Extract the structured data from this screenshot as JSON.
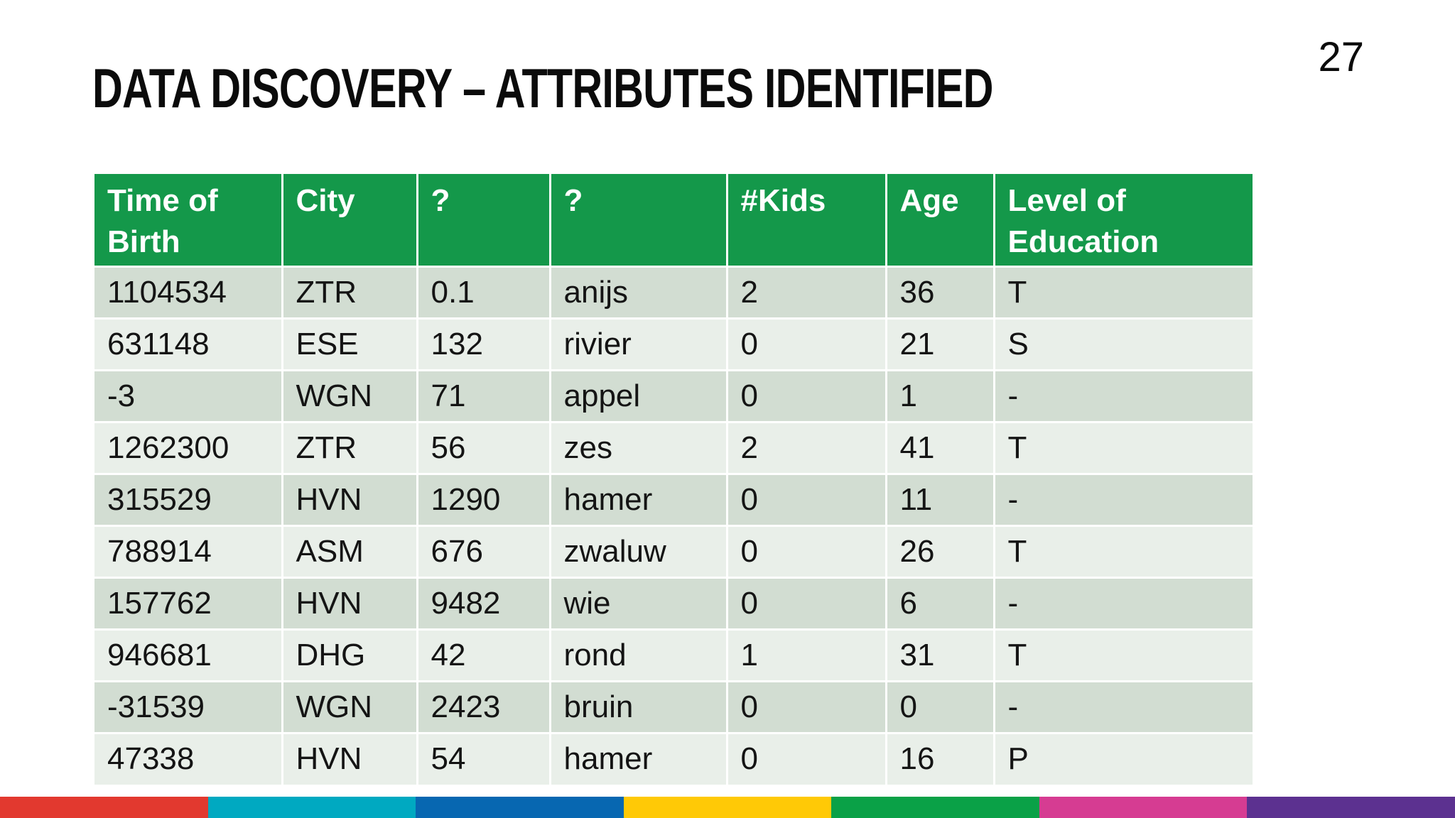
{
  "slide": {
    "title": "DATA DISCOVERY – ATTRIBUTES IDENTIFIED",
    "page_number": "27"
  },
  "table": {
    "columns": [
      "Time of Birth",
      "City",
      "?",
      "?",
      "#Kids",
      "Age",
      "Level of Education"
    ],
    "rows": [
      [
        "1104534",
        "ZTR",
        "0.1",
        "anijs",
        "2",
        "36",
        "T"
      ],
      [
        "631148",
        "ESE",
        "132",
        "rivier",
        "0",
        "21",
        "S"
      ],
      [
        "-3",
        "WGN",
        "71",
        "appel",
        "0",
        "1",
        "-"
      ],
      [
        "1262300",
        "ZTR",
        "56",
        "zes",
        "2",
        "41",
        "T"
      ],
      [
        "315529",
        "HVN",
        "1290",
        "hamer",
        "0",
        "11",
        "-"
      ],
      [
        "788914",
        "ASM",
        "676",
        "zwaluw",
        "0",
        "26",
        "T"
      ],
      [
        "157762",
        "HVN",
        "9482",
        "wie",
        "0",
        "6",
        "-"
      ],
      [
        "946681",
        "DHG",
        "42",
        "rond",
        "1",
        "31",
        "T"
      ],
      [
        "-31539",
        "WGN",
        "2423",
        "bruin",
        "0",
        "0",
        "-"
      ],
      [
        "47338",
        "HVN",
        "54",
        "hamer",
        "0",
        "16",
        "P"
      ]
    ]
  },
  "colors": {
    "title_text": "#0b0b0b",
    "header_bg": "#14984A",
    "header_text": "#ffffff",
    "row_dark": "#D2DDD2",
    "row_light": "#E9EFE9",
    "grid_line": "#ffffff"
  },
  "footer_stripe": {
    "names": [
      "red",
      "cyan",
      "blue",
      "yellow",
      "green",
      "magenta",
      "purple"
    ],
    "colors": [
      "#E2392F",
      "#00A9C1",
      "#0767B1",
      "#FFC906",
      "#0AA147",
      "#D63C92",
      "#5C3190"
    ]
  }
}
